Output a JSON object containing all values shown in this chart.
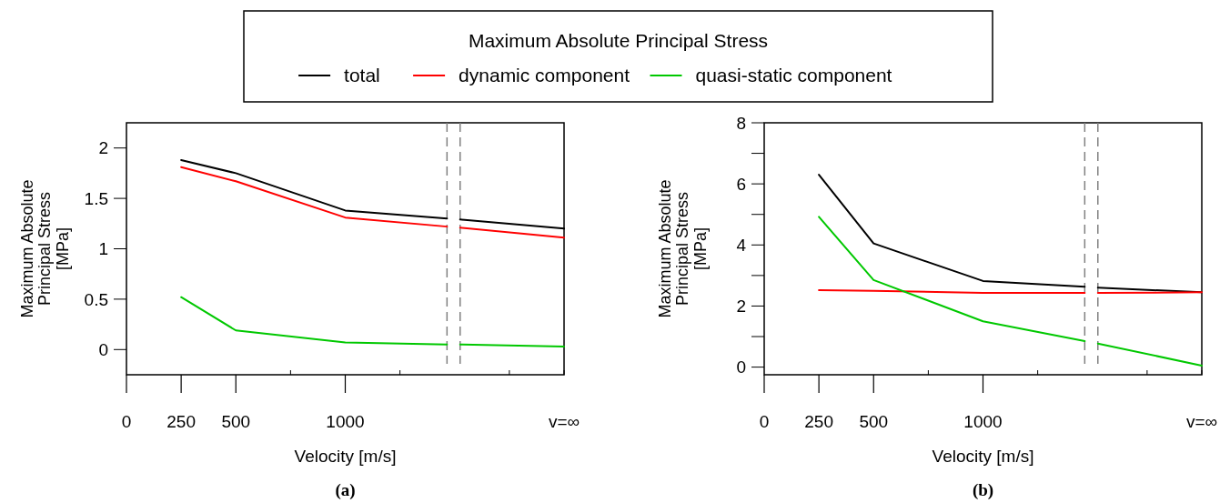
{
  "chart_data": [
    {
      "type": "line",
      "xlabel": "Velocity [m/s]",
      "ylabel": "Maximum Absolute\nPrincipal Stress\n[MPa]",
      "legend": "top",
      "legend_title": "Maximum Absolute Principal Stress",
      "annotations": [
        "(a)"
      ],
      "line_style": "solid",
      "marker": "none",
      "xlim": [
        0,
        2000
      ],
      "xticks": [
        0,
        250,
        500,
        {
          "value": 750,
          "label": null
        },
        1000,
        {
          "value": 1250,
          "label": null
        },
        {
          "value": 1750,
          "label": null
        },
        {
          "value": 2000,
          "label": "v=∞"
        }
      ],
      "ylim": [
        -0.25,
        2.25
      ],
      "yticks": [
        0,
        0.5,
        1,
        1.5,
        2
      ],
      "ref_lines": [
        {
          "axis": "x",
          "value": 1465,
          "color": "#808080",
          "line_style": "dashed"
        },
        {
          "axis": "x",
          "value": 1525,
          "color": "#808080",
          "line_style": "dashed"
        }
      ],
      "series": [
        {
          "name": "total",
          "color": "#000000",
          "x": [
            250,
            500,
            1000,
            1465,
            1500,
            1525,
            2000
          ],
          "values": [
            1.88,
            1.75,
            1.38,
            1.3,
            null,
            1.29,
            1.2
          ]
        },
        {
          "name": "dynamic component",
          "color": "#ff0000",
          "x": [
            250,
            500,
            1000,
            1465,
            1500,
            1525,
            2000
          ],
          "values": [
            1.81,
            1.67,
            1.31,
            1.22,
            null,
            1.21,
            1.11
          ]
        },
        {
          "name": "quasi-static component",
          "color": "#00c800",
          "x": [
            250,
            500,
            1000,
            1465,
            1500,
            1525,
            2000
          ],
          "values": [
            0.52,
            0.19,
            0.07,
            0.05,
            null,
            0.05,
            0.03
          ]
        }
      ]
    },
    {
      "type": "line",
      "xlabel": "Velocity [m/s]",
      "ylabel": "Maximum Absolute\nPrincipal Stress\n[MPa]",
      "annotations": [
        "(b)"
      ],
      "line_style": "solid",
      "marker": "none",
      "xlim": [
        0,
        2000
      ],
      "xticks": [
        0,
        250,
        500,
        {
          "value": 750,
          "label": null
        },
        1000,
        {
          "value": 1250,
          "label": null
        },
        {
          "value": 1750,
          "label": null
        },
        {
          "value": 2000,
          "label": "v=∞"
        }
      ],
      "ylim": [
        -0.25,
        8
      ],
      "yticks": [
        0,
        {
          "value": 1,
          "label": null
        },
        2,
        {
          "value": 3,
          "label": null
        },
        4,
        {
          "value": 5,
          "label": null
        },
        6,
        {
          "value": 7,
          "label": null
        },
        8
      ],
      "ref_lines": [
        {
          "axis": "x",
          "value": 1465,
          "color": "#808080",
          "line_style": "dashed"
        },
        {
          "axis": "x",
          "value": 1525,
          "color": "#808080",
          "line_style": "dashed"
        }
      ],
      "series": [
        {
          "color": "#000000",
          "x": [
            250,
            500,
            1000,
            1465,
            1500,
            1525,
            2000
          ],
          "values": [
            6.3,
            4.05,
            2.82,
            2.63,
            null,
            2.6,
            2.45
          ]
        },
        {
          "color": "#ff0000",
          "x": [
            250,
            500,
            1000,
            1465,
            1500,
            1525,
            2000
          ],
          "values": [
            2.52,
            2.5,
            2.43,
            2.43,
            null,
            2.43,
            2.45
          ]
        },
        {
          "color": "#00c800",
          "x": [
            250,
            500,
            1000,
            1465,
            1500,
            1525,
            2000
          ],
          "values": [
            4.92,
            2.85,
            1.5,
            0.85,
            null,
            0.77,
            0.05
          ]
        }
      ]
    }
  ]
}
